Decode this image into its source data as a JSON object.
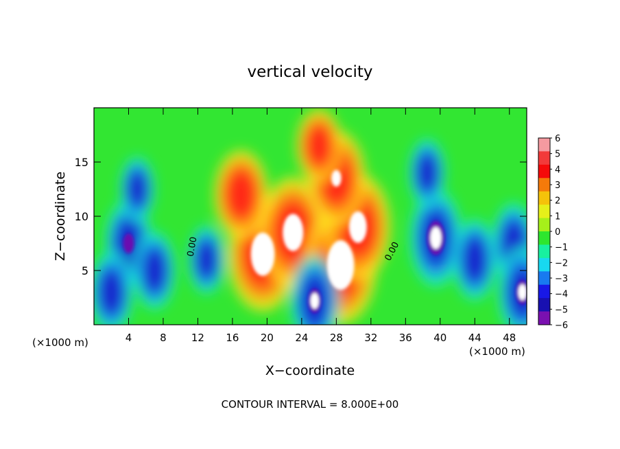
{
  "chart_data": {
    "type": "heatmap",
    "title": "vertical velocity",
    "xlabel": "X−coordinate",
    "ylabel": "Z−coordinate",
    "x_unit_left": "(×1000 m)",
    "x_unit_right": "(×1000 m)",
    "xlim": [
      0,
      50
    ],
    "ylim": [
      0,
      20
    ],
    "x_ticks": [
      "4",
      "8",
      "12",
      "16",
      "20",
      "24",
      "28",
      "32",
      "36",
      "40",
      "44",
      "48"
    ],
    "y_ticks": [
      "5",
      "10",
      "15"
    ],
    "colorbar": {
      "range": [
        -6,
        6
      ],
      "labels": [
        "6",
        "5",
        "4",
        "3",
        "2",
        "1",
        "0",
        "−1",
        "−2",
        "−3",
        "−4",
        "−5",
        "−6"
      ],
      "colors": [
        "#f59aa0",
        "#f23a3a",
        "#f50a0a",
        "#f57a0a",
        "#f5c20a",
        "#e6f01a",
        "#a6f01a",
        "#2ee62e",
        "#18f0a0",
        "#18d8f0",
        "#187af0",
        "#1818e6",
        "#1810b0",
        "#7a10b0"
      ]
    },
    "contour_label": "0.00",
    "footer": "CONTOUR INTERVAL = 8.000E+00",
    "features": [
      {
        "x": 4.0,
        "z": 7.5,
        "w": 5.5,
        "type": "downdraft"
      },
      {
        "x": 2.0,
        "z": 3.0,
        "w": 4.5,
        "type": "downdraft"
      },
      {
        "x": 7.0,
        "z": 5.0,
        "w": 4.0,
        "type": "downdraft"
      },
      {
        "x": 5.0,
        "z": 12.5,
        "w": 2.0,
        "type": "downdraft"
      },
      {
        "x": 13.0,
        "z": 6.0,
        "w": 2.5,
        "type": "downdraft"
      },
      {
        "x": 19.5,
        "z": 6.5,
        "w": 7.5,
        "type": "updraft"
      },
      {
        "x": 23.0,
        "z": 8.5,
        "w": 7.0,
        "type": "updraft"
      },
      {
        "x": 28.5,
        "z": 5.5,
        "w": 8.0,
        "type": "updraft"
      },
      {
        "x": 30.5,
        "z": 9.0,
        "w": 6.5,
        "type": "updraft"
      },
      {
        "x": 28.0,
        "z": 13.5,
        "w": 5.0,
        "type": "updraft"
      },
      {
        "x": 17.0,
        "z": 12.0,
        "w": 4.0,
        "type": "updraft"
      },
      {
        "x": 26.0,
        "z": 16.5,
        "w": 2.0,
        "type": "updraft"
      },
      {
        "x": 25.5,
        "z": 2.2,
        "w": 6.0,
        "type": "downdraft"
      },
      {
        "x": 39.5,
        "z": 8.0,
        "w": 7.0,
        "type": "downdraft"
      },
      {
        "x": 44.0,
        "z": 6.0,
        "w": 4.5,
        "type": "downdraft"
      },
      {
        "x": 48.5,
        "z": 7.5,
        "w": 4.5,
        "type": "downdraft"
      },
      {
        "x": 49.5,
        "z": 3.0,
        "w": 6.0,
        "type": "downdraft"
      },
      {
        "x": 38.5,
        "z": 14.0,
        "w": 2.5,
        "type": "downdraft"
      }
    ]
  }
}
